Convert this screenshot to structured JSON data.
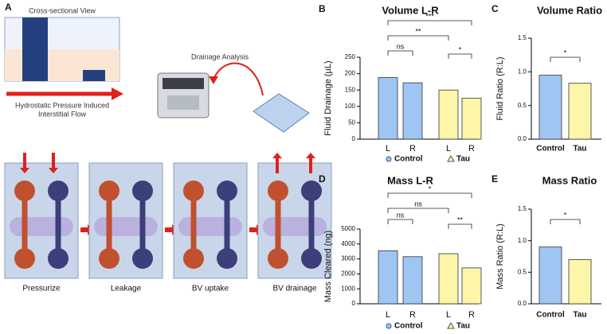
{
  "panel_a": {
    "letter": "A",
    "cross_section_title": "Cross-sectional View",
    "drainage_title": "Drainage Analysis",
    "flow_caption": [
      "Hydrostatic Pressure Induced",
      "Interstitial Flow"
    ],
    "steps": [
      "Pressurize",
      "Leakage",
      "BV uptake",
      "BV drainage"
    ]
  },
  "chart_data": [
    {
      "panel": "B",
      "type": "grouped_bar",
      "title": "Volume L-R",
      "y_label": "Fluid Drainage (µL)",
      "categories": [
        "L",
        "R"
      ],
      "series": [
        {
          "name": "Control",
          "color": "#9fc5f2",
          "marker": "circle",
          "values": [
            188,
            172
          ]
        },
        {
          "name": "Tau",
          "color": "#fdf6a8",
          "marker": "triangle",
          "values": [
            150,
            125
          ]
        }
      ],
      "ylim": [
        0,
        250
      ],
      "yticks": [
        0,
        50,
        100,
        150,
        200,
        250
      ],
      "annotations": [
        "ns",
        "***",
        "**",
        "*"
      ]
    },
    {
      "panel": "C",
      "type": "bar",
      "title": "Volume Ratio",
      "y_label": "Fluid Ratio (R:L)",
      "categories": [
        "Control",
        "Tau"
      ],
      "values": [
        0.95,
        0.83
      ],
      "colors": [
        "#9fc5f2",
        "#fdf6a8"
      ],
      "ylim": [
        0,
        1.5
      ],
      "yticks": [
        {
          "value": 0,
          "label": "0.0"
        },
        0.5,
        {
          "value": 1,
          "label": "1.0"
        },
        1.5
      ],
      "annotations": [
        "*"
      ]
    },
    {
      "panel": "D",
      "type": "grouped_bar",
      "title": "Mass L-R",
      "y_label": "Mass Cleared (ng)",
      "categories": [
        "L",
        "R"
      ],
      "series": [
        {
          "name": "Control",
          "color": "#9fc5f2",
          "marker": "circle",
          "values": [
            3550,
            3150
          ]
        },
        {
          "name": "Tau",
          "color": "#fdf6a8",
          "marker": "triangle",
          "values": [
            3350,
            2400
          ]
        }
      ],
      "ylim": [
        0,
        5000
      ],
      "yticks": [
        0,
        1000,
        2000,
        3000,
        4000,
        5000
      ],
      "annotations": [
        "ns",
        "ns",
        "*",
        "**"
      ]
    },
    {
      "panel": "E",
      "type": "bar",
      "title": "Mass Ratio",
      "y_label": "Mass Ratio (R:L)",
      "categories": [
        "Control",
        "Tau"
      ],
      "values": [
        0.9,
        0.7
      ],
      "colors": [
        "#9fc5f2",
        "#fdf6a8"
      ],
      "ylim": [
        0,
        1.5
      ],
      "yticks": [
        {
          "value": 0,
          "label": "0.0"
        },
        0.5,
        {
          "value": 1,
          "label": "1.0"
        },
        1.5
      ],
      "annotations": [
        "*"
      ]
    }
  ]
}
